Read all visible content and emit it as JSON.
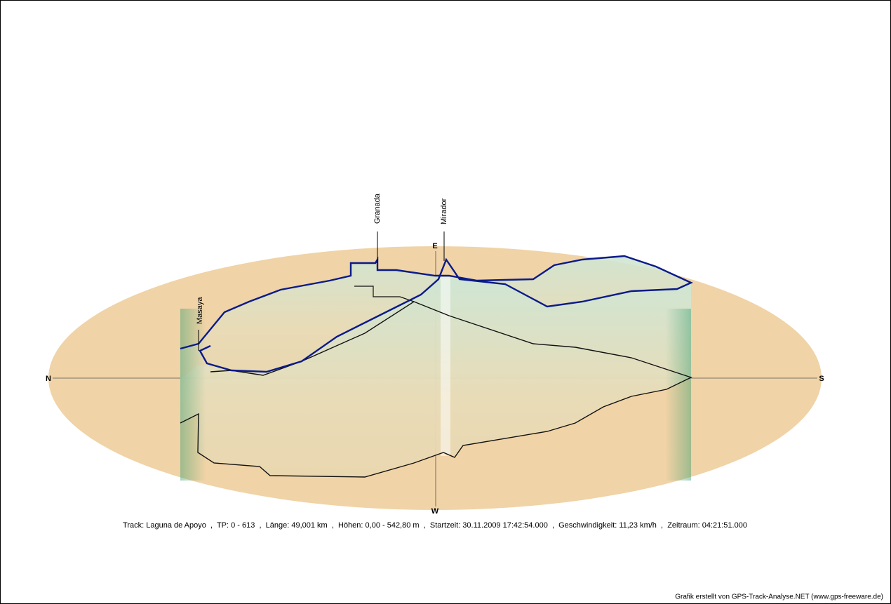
{
  "compass": {
    "north": "N",
    "south": "S",
    "east": "E",
    "west": "W"
  },
  "waypoints": [
    "Masaya",
    "Granada",
    "Mirador"
  ],
  "info": "Track: Laguna de Apoyo  ,  TP: 0 - 613  ,  Länge: 49,001 km  ,  Höhen: 0,00 - 542,80 m  ,  Startzeit: 30.11.2009 17:42:54.000  ,  Geschwindigkeit: 11,23 km/h  ,  Zeitraum: 04:21:51.000",
  "footer": "Grafik erstellt von GPS-Track-Analyse.NET (www.gps-freeware.de)"
}
